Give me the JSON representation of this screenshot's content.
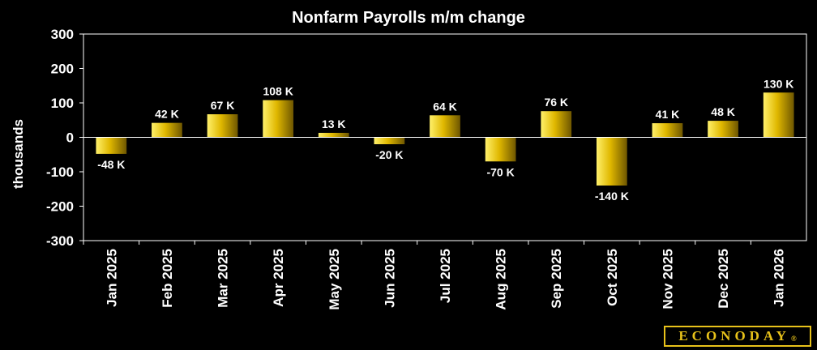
{
  "chart_data": {
    "type": "bar",
    "title": "Nonfarm Payrolls m/m change",
    "ylabel": "thousands",
    "ylim": [
      -300,
      300
    ],
    "yticks": [
      "300",
      "200",
      "100",
      "0",
      "-100",
      "-200",
      "-300"
    ],
    "categories": [
      "Jan 2025",
      "Feb 2025",
      "Mar 2025",
      "Apr 2025",
      "May 2025",
      "Jun 2025",
      "Jul 2025",
      "Aug 2025",
      "Sep 2025",
      "Oct 2025",
      "Nov 2025",
      "Dec 2025",
      "Jan 2026"
    ],
    "values": [
      -48,
      42,
      67,
      108,
      13,
      -20,
      64,
      -70,
      76,
      -140,
      41,
      48,
      130
    ],
    "data_labels": [
      "-48 K",
      "42 K",
      "67 K",
      "108 K",
      "13 K",
      "-20 K",
      "64 K",
      "-70 K",
      "76 K",
      "-140 K",
      "41 K",
      "48 K",
      "130 K"
    ],
    "grid": false,
    "legend": "none",
    "colors": {
      "bar_light": "#fff06a",
      "bar_mid": "#e0b800",
      "bar_dark": "#6e5600",
      "axis": "#ffffff",
      "background": "#000000"
    }
  },
  "logo": {
    "text": "ECONODAY",
    "mark": "®"
  }
}
